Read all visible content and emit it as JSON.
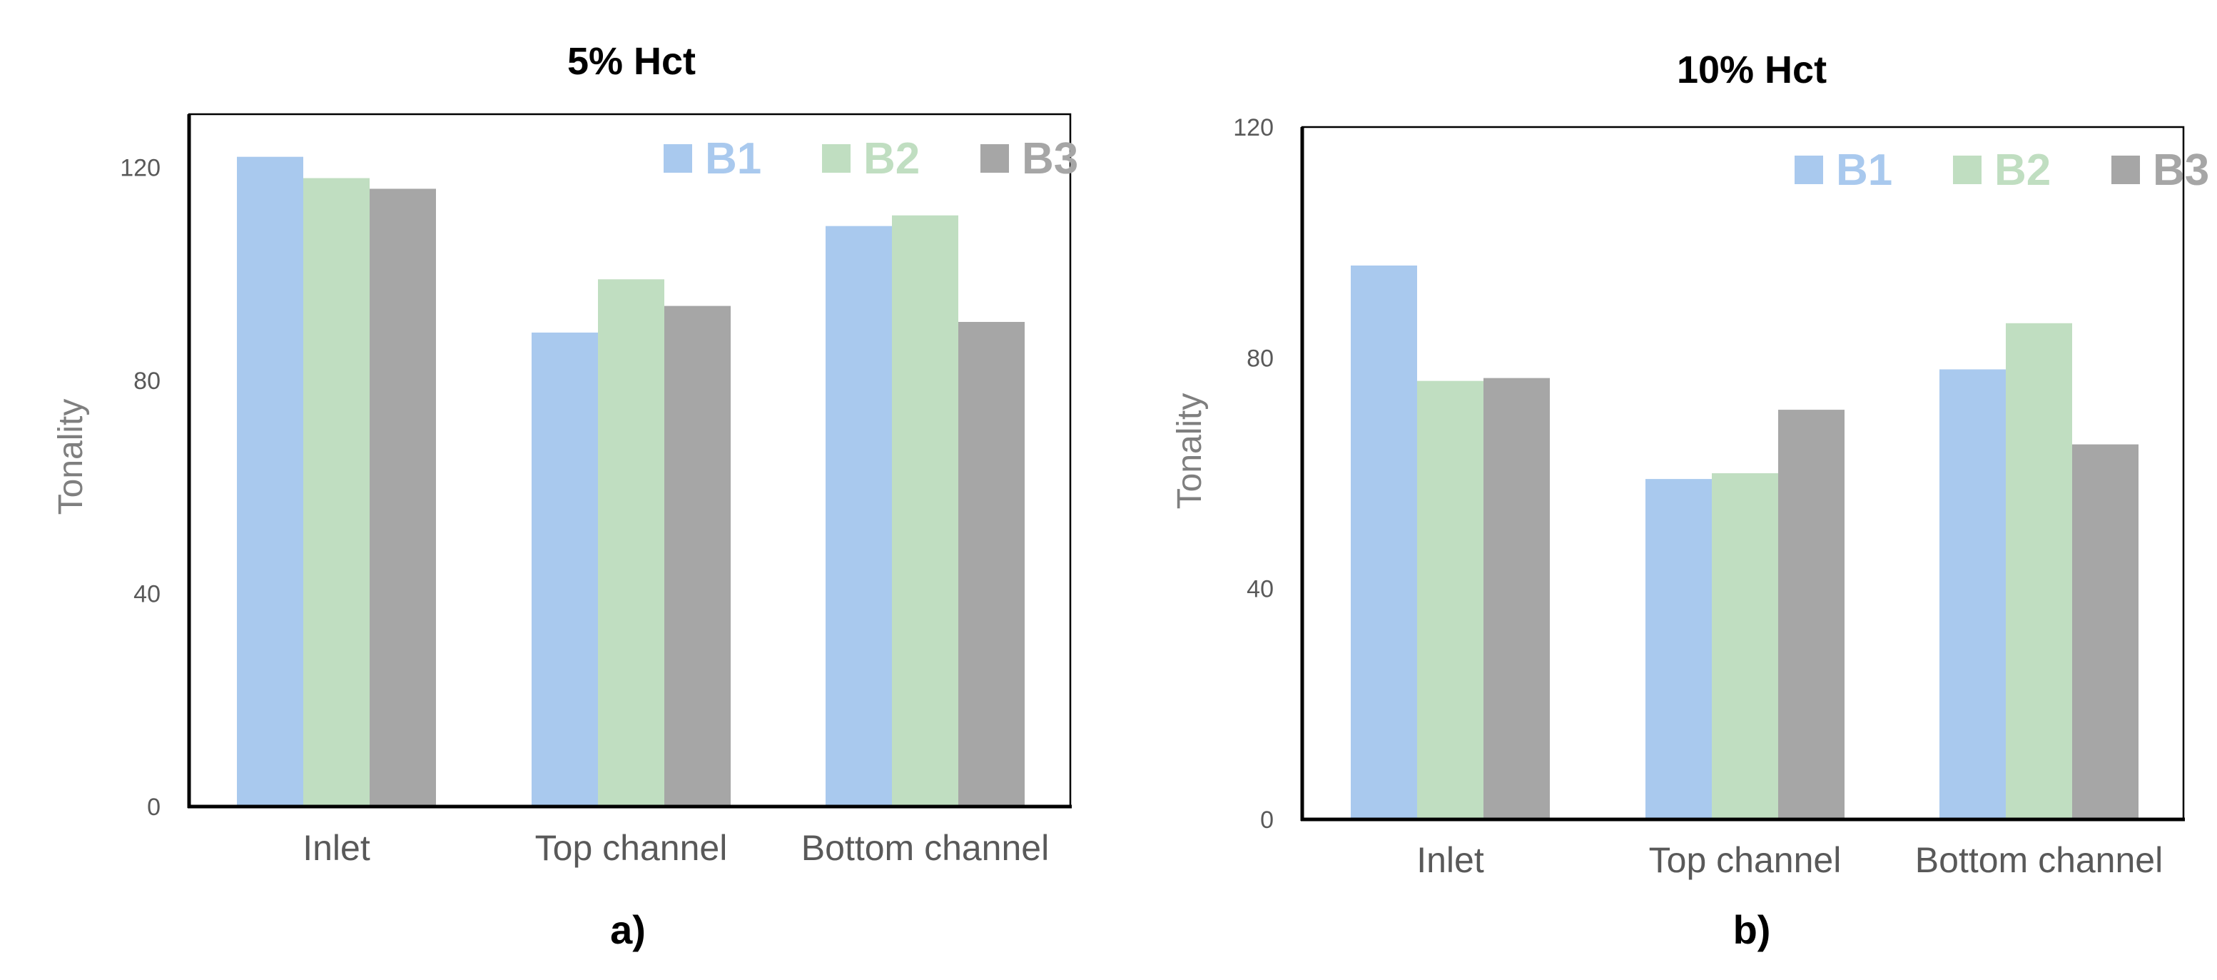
{
  "chart_data": [
    {
      "type": "bar",
      "title": "5% Hct",
      "panel_label": "a)",
      "xlabel": "",
      "ylabel": "Tonality",
      "ylim": [
        0,
        130
      ],
      "yticks": [
        0,
        40,
        80,
        120
      ],
      "categories": [
        "Inlet",
        "Top channel",
        "Bottom channel"
      ],
      "series": [
        {
          "name": "B1",
          "color": "#a9c9ee",
          "values": [
            122,
            89,
            109
          ]
        },
        {
          "name": "B2",
          "color": "#c0dec1",
          "values": [
            118,
            99,
            111
          ]
        },
        {
          "name": "B3",
          "color": "#a6a6a6",
          "values": [
            116,
            94,
            91
          ]
        }
      ],
      "legend_position": "top-right"
    },
    {
      "type": "bar",
      "title": "10% Hct",
      "panel_label": "b)",
      "xlabel": "",
      "ylabel": "Tonality",
      "ylim": [
        0,
        120
      ],
      "yticks": [
        0,
        40,
        80,
        120
      ],
      "categories": [
        "Inlet",
        "Top channel",
        "Bottom channel"
      ],
      "series": [
        {
          "name": "B1",
          "color": "#a9c9ee",
          "values": [
            96,
            59,
            78
          ]
        },
        {
          "name": "B2",
          "color": "#c0dec1",
          "values": [
            76,
            60,
            86
          ]
        },
        {
          "name": "B3",
          "color": "#a6a6a6",
          "values": [
            76.5,
            71,
            65
          ]
        }
      ],
      "legend_position": "top-right"
    }
  ]
}
